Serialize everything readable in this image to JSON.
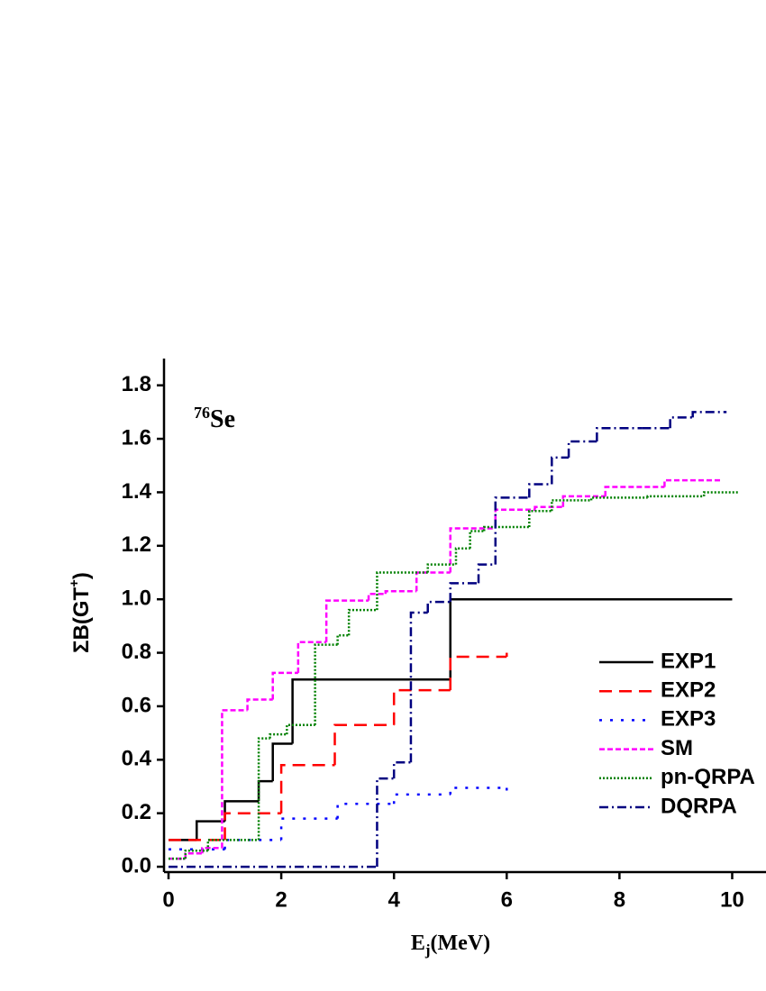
{
  "chart_data": {
    "type": "step",
    "annotation": {
      "mass": "76",
      "element": "Se"
    },
    "x_label": {
      "text": "E",
      "sub": "j",
      "end": "(MeV)"
    },
    "y_label": {
      "text": "ΣB(GT",
      "sup": "+",
      "end": ")"
    },
    "xlim": [
      -0.08,
      10.6
    ],
    "ylim": [
      -0.02,
      1.9
    ],
    "xticks": [
      0,
      2,
      4,
      6,
      8,
      10
    ],
    "yticks": [
      {
        "value": 0,
        "label": "0.0"
      },
      0.2,
      0.4,
      0.6,
      0.8,
      {
        "value": 1,
        "label": "1.0"
      },
      1.2,
      1.4,
      1.6,
      1.8
    ],
    "series": [
      {
        "name": "EXP1",
        "color": "#000000",
        "dash": "",
        "x": [
          0,
          0.5,
          1.0,
          1.6,
          1.85,
          2.2,
          5.0,
          10
        ],
        "values": [
          0.1,
          0.17,
          0.245,
          0.32,
          0.46,
          0.7,
          1.0,
          1.0
        ]
      },
      {
        "name": "EXP2",
        "color": "#ff0000",
        "dash": "14 8",
        "x": [
          0,
          1,
          2,
          2.95,
          4,
          5,
          6
        ],
        "values": [
          0.1,
          0.2,
          0.38,
          0.53,
          0.66,
          0.785,
          0.8
        ]
      },
      {
        "name": "EXP3",
        "color": "#0000ff",
        "dash": "3 9",
        "x": [
          0,
          1,
          2,
          3,
          4,
          5,
          6
        ],
        "values": [
          0.065,
          0.1,
          0.18,
          0.235,
          0.27,
          0.295,
          0.28
        ]
      },
      {
        "name": "SM",
        "color": "#ff00ff",
        "dash": "6 3",
        "x": [
          0,
          0.3,
          0.6,
          0.95,
          1.4,
          1.85,
          2.3,
          2.8,
          3.55,
          3.85,
          4.4,
          5.0,
          5.8,
          6.5,
          7.0,
          7.75,
          8.8,
          9.8
        ],
        "values": [
          0.03,
          0.05,
          0.07,
          0.585,
          0.625,
          0.725,
          0.84,
          0.995,
          1.02,
          1.03,
          1.1,
          1.265,
          1.335,
          1.345,
          1.385,
          1.42,
          1.445,
          1.445
        ]
      },
      {
        "name": "pn-QRPA",
        "color": "#008000",
        "dash": "2 2",
        "x": [
          0,
          0.3,
          0.7,
          1.6,
          1.8,
          2.1,
          2.6,
          3.0,
          3.2,
          3.7,
          4.6,
          5.1,
          5.35,
          5.6,
          6.4,
          6.8,
          7.5,
          8.5,
          9.5,
          10.1
        ],
        "values": [
          0.03,
          0.06,
          0.1,
          0.48,
          0.495,
          0.53,
          0.83,
          0.865,
          0.96,
          1.1,
          1.13,
          1.19,
          1.255,
          1.27,
          1.33,
          1.37,
          1.38,
          1.385,
          1.4,
          1.4
        ]
      },
      {
        "name": "DQRPA",
        "color": "#000080",
        "dash": "10 4 2 4",
        "x": [
          0,
          3.7,
          4.0,
          4.3,
          4.6,
          5.0,
          5.5,
          5.8,
          6.4,
          6.8,
          7.1,
          7.6,
          8.4,
          8.9,
          9.3,
          9.9
        ],
        "values": [
          0,
          0.33,
          0.39,
          0.95,
          0.99,
          1.06,
          1.13,
          1.38,
          1.43,
          1.53,
          1.59,
          1.64,
          1.64,
          1.68,
          1.7,
          1.7
        ]
      }
    ]
  }
}
